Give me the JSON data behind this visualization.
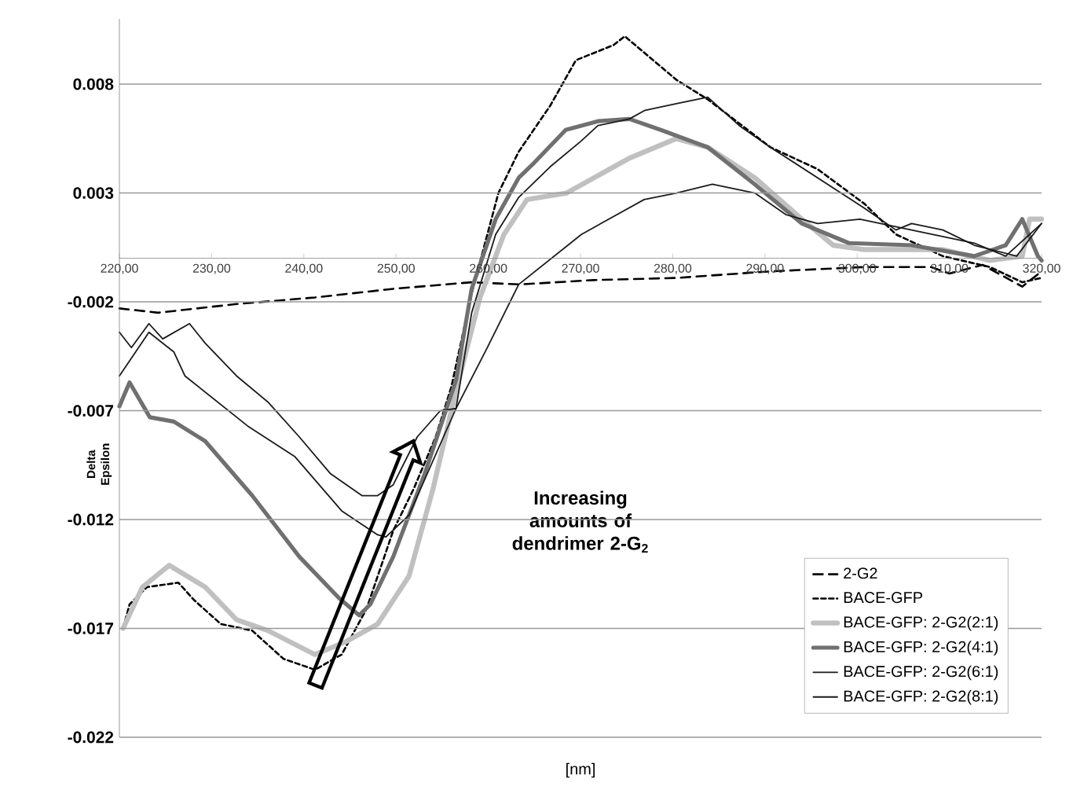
{
  "chart_data": {
    "type": "line",
    "xlabel": "[nm]",
    "ylabel": "Delta Epsilon",
    "annotations": [
      "Increasing amounts of dendrimer 2-G$_{2}$"
    ],
    "xlim": [
      220,
      320
    ],
    "xticks": [
      {
        "value": 220,
        "label": "220,00"
      },
      {
        "value": 230,
        "label": "230,00"
      },
      {
        "value": 240,
        "label": "240,00"
      },
      {
        "value": 250,
        "label": "250,00"
      },
      {
        "value": 260,
        "label": "260,00"
      },
      {
        "value": 270,
        "label": "270,00"
      },
      {
        "value": 280,
        "label": "280,00"
      },
      {
        "value": 290,
        "label": "290,00"
      },
      {
        "value": 300,
        "label": "300,00"
      },
      {
        "value": 310,
        "label": "310,00"
      },
      {
        "value": 320,
        "label": "320,00"
      }
    ],
    "ylim": [
      -0.022,
      0.011
    ],
    "yticks": [
      -0.022,
      -0.017,
      -0.012,
      -0.007,
      -0.002,
      0.003,
      0.008
    ],
    "grid": "y",
    "legend": "bottom right",
    "series": [
      {
        "name": "2-G2",
        "color": "#000000",
        "line_style": "dashed",
        "x": [
          220,
          224.2,
          232.7,
          241.2,
          249.7,
          258.2,
          263.4,
          271.4,
          280.4,
          290.6,
          300.8,
          308,
          310,
          313.6,
          317.9,
          320
        ],
        "values": [
          -0.0023,
          -0.0025,
          -0.0021,
          -0.0018,
          -0.0014,
          -0.0011,
          -0.0012,
          -0.001,
          -0.0009,
          -0.0006,
          -0.0004,
          -0.0004,
          -0.0007,
          -0.0003,
          -0.0013,
          -0.0006
        ]
      },
      {
        "name": "BACE-GFP",
        "color": "#000000",
        "line_style": "dashed",
        "x": [
          220.4,
          221.1,
          223,
          226.4,
          228.1,
          231,
          234.4,
          237.8,
          241.2,
          244.1,
          246.8,
          249.7,
          251.9,
          254.3,
          256,
          258.2,
          261.1,
          263.3,
          266.7,
          269.5,
          273.6,
          274.8,
          280.4,
          283.8,
          290.6,
          295.7,
          300.8,
          304.2,
          309.3,
          314.4,
          317.9,
          320
        ],
        "values": [
          -0.017,
          -0.0159,
          -0.0151,
          -0.0149,
          -0.0157,
          -0.0168,
          -0.0171,
          -0.0184,
          -0.0189,
          -0.0182,
          -0.0161,
          -0.0125,
          -0.0106,
          -0.0082,
          -0.0059,
          -0.0016,
          0.003,
          0.0049,
          0.007,
          0.0091,
          0.0098,
          0.0102,
          0.0082,
          0.0073,
          0.0051,
          0.0041,
          0.0025,
          0.0011,
          0.0001,
          -0.0004,
          -0.0011,
          -0.0009
        ]
      },
      {
        "name": "BACE-GFP: 2-G2(2:1)",
        "color": "#c0c0c0",
        "x": [
          220.4,
          222.5,
          225.4,
          229.3,
          232.7,
          236.1,
          241.2,
          244.6,
          248,
          251.4,
          254,
          256.5,
          259.1,
          261.7,
          264.2,
          268.5,
          275.3,
          280.4,
          283.8,
          288.9,
          294,
          297.4,
          300.8,
          309.3,
          314.4,
          317.9,
          318.7,
          320
        ],
        "values": [
          -0.017,
          -0.0151,
          -0.0141,
          -0.0151,
          -0.0166,
          -0.0171,
          -0.0182,
          -0.0176,
          -0.0168,
          -0.0146,
          -0.0106,
          -0.0061,
          -0.0018,
          0.0011,
          0.0027,
          0.003,
          0.0046,
          0.0055,
          0.0051,
          0.0037,
          0.0018,
          0.0006,
          0.0004,
          0.0004,
          -0.0001,
          0.0001,
          0.0018,
          0.0018
        ]
      },
      {
        "name": "BACE-GFP: 2-G2(4:1)",
        "color": "#707070",
        "x": [
          220,
          221.1,
          223.3,
          225.9,
          229.3,
          234.4,
          239.5,
          243.8,
          246,
          247.2,
          249.7,
          253.1,
          256.5,
          258.2,
          260.8,
          263.3,
          265,
          268.4,
          271.9,
          275.3,
          278.7,
          283.8,
          288.9,
          294,
          299.1,
          305.9,
          312.7,
          316.1,
          317.9,
          319.6,
          320
        ],
        "values": [
          -0.0068,
          -0.0057,
          -0.0073,
          -0.0075,
          -0.0084,
          -0.0109,
          -0.0137,
          -0.0156,
          -0.0164,
          -0.0159,
          -0.0137,
          -0.0099,
          -0.0056,
          -0.0014,
          0.0018,
          0.0037,
          0.0044,
          0.0059,
          0.0063,
          0.0064,
          0.0059,
          0.0051,
          0.0034,
          0.0016,
          0.0007,
          0.0006,
          0.0001,
          0.0006,
          0.0018,
          0.0001,
          -0.0001
        ]
      },
      {
        "name": "BACE-GFP: 2-G2(6:1)",
        "color": "#1a1a1a",
        "x": [
          220,
          223.2,
          225.9,
          227.1,
          233.9,
          239,
          244.1,
          248,
          248.9,
          251.4,
          256.5,
          258.2,
          260.8,
          263.3,
          266.7,
          270.1,
          271.9,
          275.3,
          277,
          280.4,
          283.8,
          287.2,
          290.6,
          295.7,
          300.8,
          304.2,
          305.9,
          309.3,
          312.7,
          317.3,
          320
        ],
        "values": [
          -0.0054,
          -0.0034,
          -0.0043,
          -0.0054,
          -0.0077,
          -0.0091,
          -0.0116,
          -0.0127,
          -0.0128,
          -0.0118,
          -0.0069,
          -0.0025,
          0.0011,
          0.0028,
          0.0042,
          0.0054,
          0.0061,
          0.0064,
          0.0068,
          0.0071,
          0.0074,
          0.0061,
          0.0051,
          0.0037,
          0.0023,
          0.0013,
          0.0016,
          0.0013,
          0.0006,
          0.0001,
          0.0016
        ]
      },
      {
        "name": "BACE-GFP: 2-G2(8:1)",
        "color": "#1a1a1a",
        "x": [
          220,
          221.3,
          223.2,
          224.7,
          227.6,
          229.3,
          232.7,
          236.1,
          239.5,
          242.9,
          246.3,
          248,
          249.7,
          252.3,
          254.8,
          256.5,
          259.9,
          263.3,
          270.1,
          276.9,
          280.4,
          284.3,
          288.9,
          292.3,
          295.7,
          300.3,
          305.9,
          312.7,
          316.1,
          320
        ],
        "values": [
          -0.0034,
          -0.0041,
          -0.003,
          -0.0037,
          -0.003,
          -0.0039,
          -0.0054,
          -0.0066,
          -0.0082,
          -0.0099,
          -0.0109,
          -0.0109,
          -0.0104,
          -0.0082,
          -0.007,
          -0.0069,
          -0.0041,
          -0.0012,
          0.0011,
          0.0027,
          0.003,
          0.0034,
          0.003,
          0.002,
          0.0016,
          0.0018,
          0.0013,
          0.0007,
          0.0001,
          0.0016
        ]
      }
    ]
  }
}
